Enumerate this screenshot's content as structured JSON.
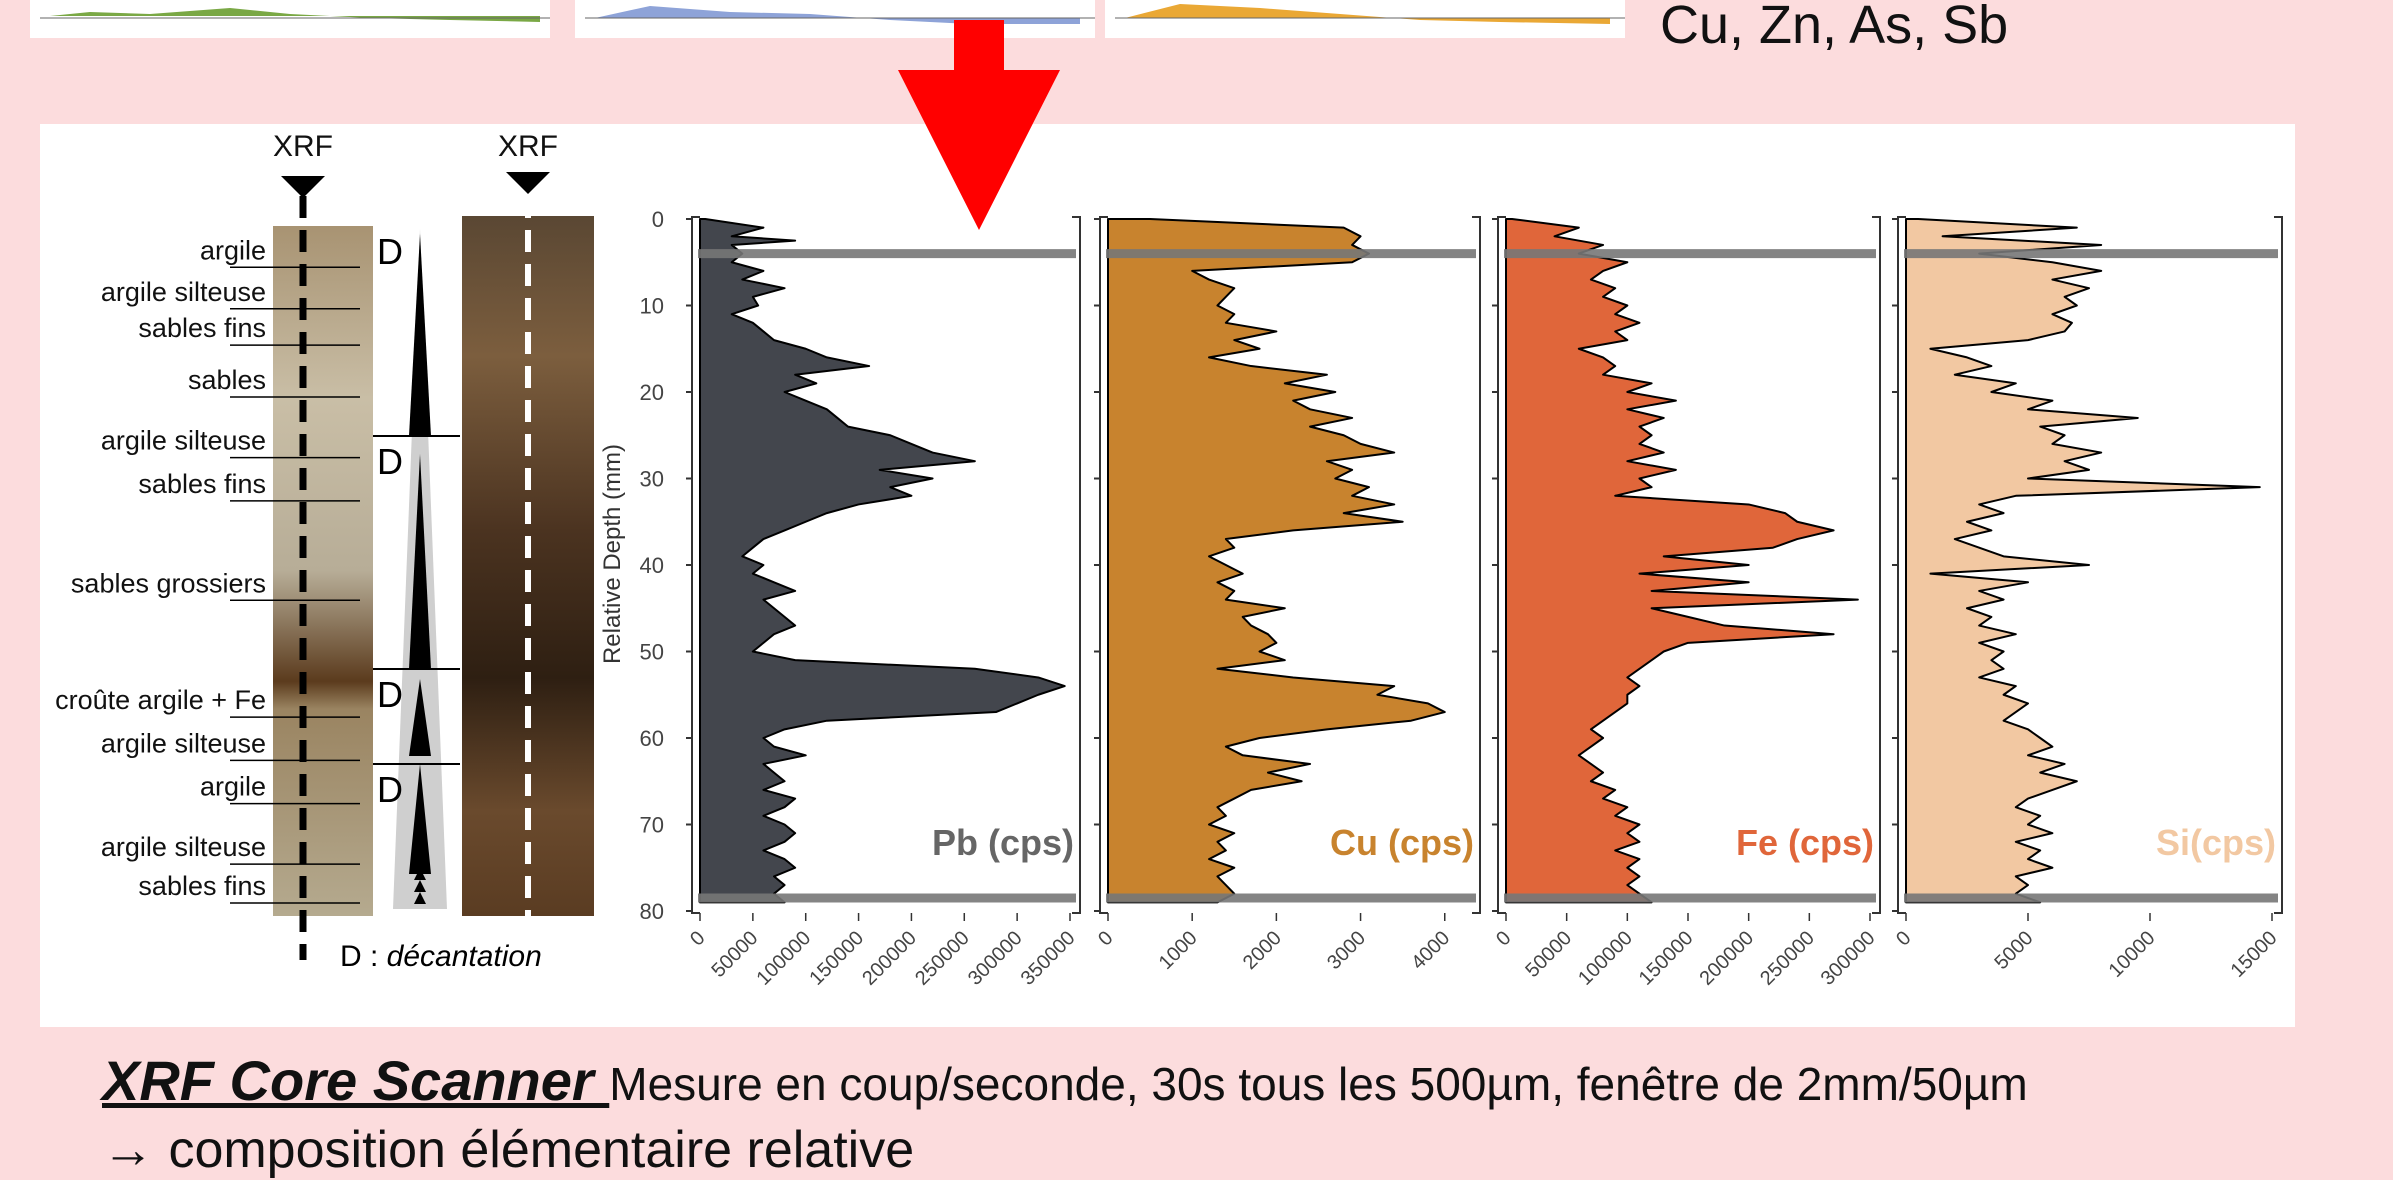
{
  "header": {
    "elements_line": "Cu, Zn, As, Sb"
  },
  "colors": {
    "page_bg": "#fcdcdd",
    "arrow": "#ff0000",
    "Pb": "#43464d",
    "Cu": "#c8832e",
    "Fe": "#e0663a",
    "Si": "#f2c8a2",
    "boundary": "#777777"
  },
  "core": {
    "xrf_label_left": "XRF",
    "xrf_label_right": "XRF",
    "decantation_marker": "D",
    "legend_key": "D : ",
    "legend_value": "décantation",
    "layers": [
      {
        "label": "argile",
        "depth": 3.5
      },
      {
        "label": "argile silteuse",
        "depth": 8.3
      },
      {
        "label": "sables fins",
        "depth": 12.5
      },
      {
        "label": "sables",
        "depth": 18.5
      },
      {
        "label": "argile silteuse",
        "depth": 25.5
      },
      {
        "label": "sables fins",
        "depth": 30.5
      },
      {
        "label": "sables grossiers",
        "depth": 42.0
      },
      {
        "label": "croûte argile + Fe",
        "depth": 55.5
      },
      {
        "label": "argile silteuse",
        "depth": 60.5
      },
      {
        "label": "argile",
        "depth": 65.5
      },
      {
        "label": "argile silteuse",
        "depth": 72.5
      },
      {
        "label": "sables fins",
        "depth": 77.0
      }
    ]
  },
  "chart_data": {
    "type": "area",
    "ylabel": "Relative Depth (mm)",
    "ylim": [
      0,
      80
    ],
    "y_ticks": [
      0,
      10,
      20,
      30,
      40,
      50,
      60,
      70,
      80
    ],
    "boundary_depths": [
      4,
      78.5
    ],
    "panels": [
      {
        "name": "Pb (cps)",
        "xlim": [
          0,
          350000
        ],
        "x_ticks": [
          "0",
          "50000",
          "100000",
          "150000",
          "200000",
          "250000",
          "300000",
          "350000"
        ],
        "depth": [
          0,
          1,
          2,
          2.5,
          3,
          4,
          5,
          6,
          7,
          8,
          9,
          10,
          11,
          12,
          13,
          14,
          15,
          16,
          17,
          18,
          19,
          20,
          21,
          22,
          23,
          24,
          25,
          26,
          27,
          28,
          29,
          30,
          31,
          32,
          33,
          34,
          35,
          36,
          37,
          38,
          39,
          40,
          41,
          42,
          43,
          44,
          45,
          46,
          47,
          48,
          49,
          50,
          51,
          52,
          53,
          54,
          55,
          56,
          57,
          58,
          59,
          60,
          61,
          62,
          63,
          64,
          65,
          66,
          67,
          68,
          69,
          70,
          71,
          72,
          73,
          74,
          75,
          76,
          77,
          78,
          79
        ],
        "values": [
          5000,
          60000,
          30000,
          90000,
          30000,
          40000,
          30000,
          60000,
          40000,
          80000,
          50000,
          55000,
          30000,
          50000,
          60000,
          70000,
          100000,
          120000,
          160000,
          90000,
          110000,
          80000,
          100000,
          120000,
          130000,
          140000,
          180000,
          200000,
          220000,
          260000,
          170000,
          220000,
          180000,
          200000,
          150000,
          120000,
          100000,
          80000,
          60000,
          50000,
          40000,
          60000,
          50000,
          70000,
          90000,
          60000,
          70000,
          80000,
          90000,
          70000,
          60000,
          50000,
          90000,
          260000,
          320000,
          345000,
          320000,
          300000,
          280000,
          120000,
          80000,
          60000,
          70000,
          100000,
          60000,
          70000,
          80000,
          60000,
          90000,
          80000,
          60000,
          80000,
          90000,
          80000,
          60000,
          80000,
          90000,
          70000,
          80000,
          70000,
          80000
        ]
      },
      {
        "name": "Cu (cps)",
        "xlim": [
          0,
          4300
        ],
        "x_ticks": [
          "0",
          "1000",
          "2000",
          "3000",
          "4000"
        ],
        "depth": [
          0,
          1,
          2,
          3,
          4,
          5,
          6,
          7,
          8,
          9,
          10,
          11,
          12,
          13,
          14,
          15,
          16,
          17,
          18,
          19,
          20,
          21,
          22,
          23,
          24,
          25,
          26,
          27,
          28,
          29,
          30,
          31,
          32,
          33,
          34,
          35,
          36,
          37,
          38,
          39,
          40,
          41,
          42,
          43,
          44,
          45,
          46,
          47,
          48,
          49,
          50,
          51,
          52,
          53,
          54,
          55,
          56,
          57,
          58,
          59,
          60,
          61,
          62,
          63,
          64,
          65,
          66,
          67,
          68,
          69,
          70,
          71,
          72,
          73,
          74,
          75,
          76,
          77,
          78,
          79
        ],
        "values": [
          500,
          2800,
          3000,
          2900,
          3100,
          2900,
          1000,
          1200,
          1500,
          1400,
          1300,
          1500,
          1400,
          2000,
          1500,
          1800,
          1200,
          1700,
          2600,
          2100,
          2700,
          2200,
          2400,
          2900,
          2400,
          2800,
          3000,
          3400,
          2600,
          2900,
          2700,
          3100,
          2900,
          3400,
          2800,
          3500,
          2200,
          1400,
          1500,
          1200,
          1400,
          1600,
          1300,
          1500,
          1400,
          2100,
          1600,
          1700,
          1900,
          2000,
          1800,
          2100,
          1300,
          2200,
          3400,
          3200,
          3800,
          4000,
          3600,
          2600,
          1800,
          1400,
          1600,
          2400,
          1900,
          2300,
          1700,
          1500,
          1300,
          1400,
          1200,
          1500,
          1300,
          1400,
          1200,
          1500,
          1300,
          1400,
          1500,
          1300,
          1300
        ]
      },
      {
        "name": "Fe (cps)",
        "xlim": [
          0,
          300000
        ],
        "x_ticks": [
          "0",
          "50000",
          "100000",
          "150000",
          "200000",
          "250000",
          "300000"
        ],
        "depth": [
          0,
          1,
          2,
          3,
          4,
          5,
          6,
          7,
          8,
          9,
          10,
          11,
          12,
          13,
          14,
          15,
          16,
          17,
          18,
          19,
          20,
          21,
          22,
          23,
          24,
          25,
          26,
          27,
          28,
          29,
          30,
          31,
          32,
          33,
          34,
          35,
          36,
          37,
          38,
          39,
          40,
          41,
          42,
          43,
          44,
          45,
          46,
          47,
          48,
          49,
          50,
          51,
          52,
          53,
          54,
          55,
          56,
          57,
          58,
          59,
          60,
          61,
          62,
          63,
          64,
          65,
          66,
          67,
          68,
          69,
          70,
          71,
          72,
          73,
          74,
          75,
          76,
          77,
          78,
          79
        ],
        "values": [
          5000,
          60000,
          40000,
          80000,
          60000,
          100000,
          80000,
          70000,
          90000,
          80000,
          100000,
          90000,
          110000,
          90000,
          100000,
          60000,
          80000,
          90000,
          80000,
          120000,
          100000,
          140000,
          100000,
          130000,
          110000,
          120000,
          110000,
          130000,
          100000,
          140000,
          110000,
          120000,
          90000,
          200000,
          230000,
          240000,
          270000,
          240000,
          220000,
          130000,
          200000,
          110000,
          200000,
          120000,
          290000,
          120000,
          150000,
          180000,
          270000,
          150000,
          130000,
          120000,
          110000,
          100000,
          110000,
          100000,
          100000,
          90000,
          80000,
          70000,
          80000,
          70000,
          60000,
          70000,
          80000,
          70000,
          90000,
          80000,
          100000,
          90000,
          110000,
          100000,
          110000,
          90000,
          110000,
          100000,
          110000,
          100000,
          110000,
          120000,
          150000
        ]
      },
      {
        "name": "Si(cps)",
        "xlim": [
          0,
          15000
        ],
        "x_ticks": [
          "0",
          "5000",
          "10000",
          "15000"
        ],
        "depth": [
          0,
          1,
          2,
          3,
          4,
          5,
          6,
          7,
          8,
          9,
          10,
          11,
          12,
          13,
          14,
          15,
          16,
          17,
          18,
          19,
          20,
          21,
          22,
          23,
          24,
          25,
          26,
          27,
          28,
          29,
          30,
          31,
          32,
          33,
          34,
          35,
          36,
          37,
          38,
          39,
          40,
          41,
          42,
          43,
          44,
          45,
          46,
          47,
          48,
          49,
          50,
          51,
          52,
          53,
          54,
          55,
          56,
          57,
          58,
          59,
          60,
          61,
          62,
          63,
          64,
          65,
          66,
          67,
          68,
          69,
          70,
          71,
          72,
          73,
          74,
          75,
          76,
          77,
          78,
          79
        ],
        "values": [
          500,
          7000,
          1500,
          8000,
          3000,
          6000,
          8000,
          6000,
          7500,
          6500,
          7000,
          6000,
          6800,
          6500,
          5000,
          1000,
          2500,
          3500,
          2000,
          4500,
          3500,
          6000,
          5000,
          9500,
          5500,
          6500,
          6000,
          8000,
          6500,
          7500,
          5000,
          14500,
          4500,
          3000,
          4000,
          2500,
          3500,
          2000,
          3000,
          4000,
          7500,
          1000,
          5000,
          3000,
          4000,
          2500,
          3500,
          3000,
          4500,
          3000,
          4000,
          3500,
          4000,
          3000,
          4500,
          4000,
          5000,
          4500,
          4000,
          5000,
          5500,
          6000,
          5000,
          6500,
          5500,
          7000,
          6000,
          5000,
          4500,
          5500,
          5000,
          6000,
          4500,
          5500,
          5000,
          6000,
          4500,
          5000,
          4500,
          5500,
          6000
        ]
      }
    ]
  },
  "caption": {
    "title": "XRF Core Scanner ",
    "text": "Mesure en coup/seconde, 30s tous les 500µm, fenêtre de 2mm/50µm",
    "line2": "→ composition élémentaire relative"
  }
}
